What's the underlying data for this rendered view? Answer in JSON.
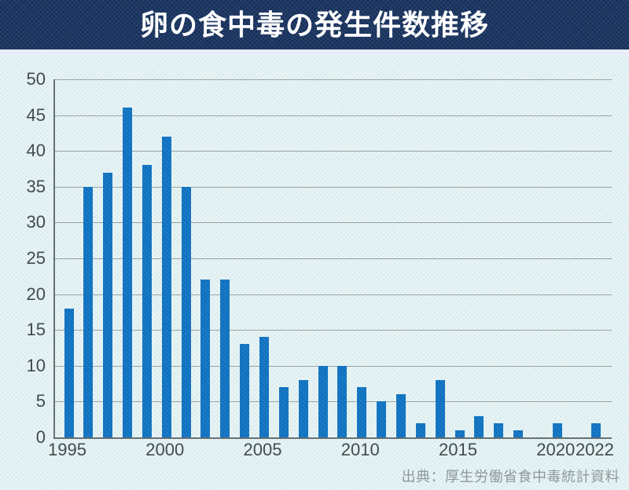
{
  "header": {
    "title": "卵の食中毒の発生件数推移"
  },
  "footer": {
    "source": "出典：厚生労働省食中毒統計資料"
  },
  "colors": {
    "header_bg": "#17315c",
    "header_text": "#ffffff",
    "page_bg": "#dbedef",
    "divider_strip": "#e7edf8",
    "bar": "#0f72c0",
    "grid": "#9aa2a3",
    "axis": "#677173",
    "tick_text": "#414b4d",
    "source_text": "#8e999b"
  },
  "chart_data": {
    "type": "bar",
    "title": "卵の食中毒の発生件数推移",
    "source": "出典：厚生労働省食中毒統計資料",
    "xlabel": "",
    "ylabel": "",
    "ylim": [
      0,
      50
    ],
    "y_ticks": [
      0,
      5,
      10,
      15,
      20,
      25,
      30,
      35,
      40,
      45,
      50
    ],
    "x_tick_years": [
      1995,
      2000,
      2005,
      2010,
      2015,
      2020,
      2022
    ],
    "grid": true,
    "legend": false,
    "years": [
      1995,
      1996,
      1997,
      1998,
      1999,
      2000,
      2001,
      2002,
      2003,
      2004,
      2005,
      2006,
      2007,
      2008,
      2009,
      2010,
      2011,
      2012,
      2013,
      2014,
      2015,
      2016,
      2017,
      2018,
      2019,
      2020,
      2021,
      2022
    ],
    "values": [
      18,
      35,
      37,
      46,
      38,
      42,
      35,
      22,
      22,
      13,
      14,
      7,
      8,
      10,
      10,
      7,
      5,
      6,
      2,
      8,
      1,
      3,
      2,
      1,
      0,
      2,
      0,
      2
    ]
  }
}
